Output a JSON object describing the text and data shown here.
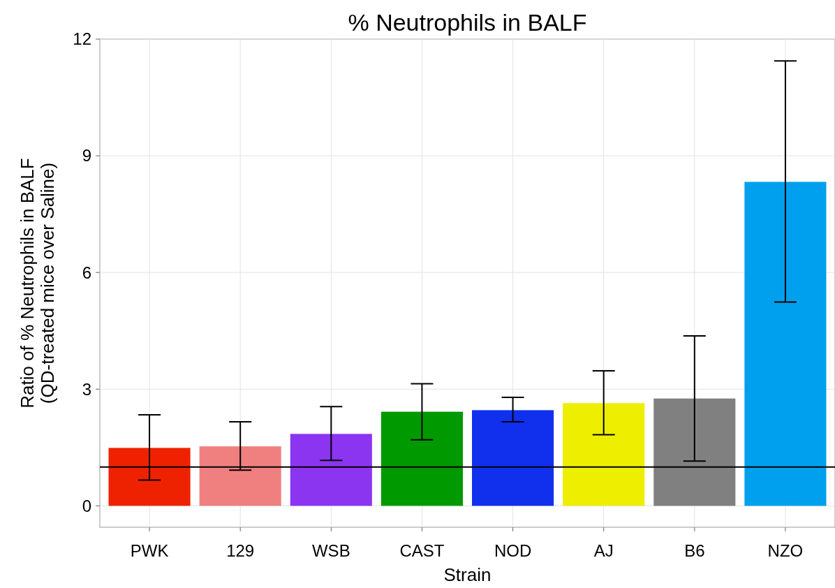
{
  "chart_data": {
    "type": "bar",
    "title": "% Neutrophils in BALF",
    "xlabel": "Strain",
    "ylabel": "Ratio of % Neutrophils in BALF\n(QD-treated mice over Saline)",
    "categories": [
      "PWK",
      "129",
      "WSB",
      "CAST",
      "NOD",
      "AJ",
      "B6",
      "NZO"
    ],
    "values": [
      1.49,
      1.53,
      1.85,
      2.42,
      2.46,
      2.64,
      2.76,
      8.33
    ],
    "colors": [
      "#ee2200",
      "#f08080",
      "#8b35f0",
      "#009900",
      "#1030ee",
      "#eeee00",
      "#808080",
      "#00a0ee"
    ],
    "errors": [
      [
        0.66,
        2.34
      ],
      [
        0.92,
        2.16
      ],
      [
        1.17,
        2.55
      ],
      [
        1.7,
        3.14
      ],
      [
        2.16,
        2.79
      ],
      [
        1.83,
        3.47
      ],
      [
        1.15,
        4.37
      ],
      [
        5.24,
        11.44
      ]
    ],
    "ylim": [
      -0.55,
      12
    ],
    "yticks": [
      0,
      3,
      6,
      9,
      12
    ],
    "grid": true,
    "ref_lines": [
      {
        "axis": "y",
        "value": 1,
        "color": "#000000"
      }
    ]
  }
}
